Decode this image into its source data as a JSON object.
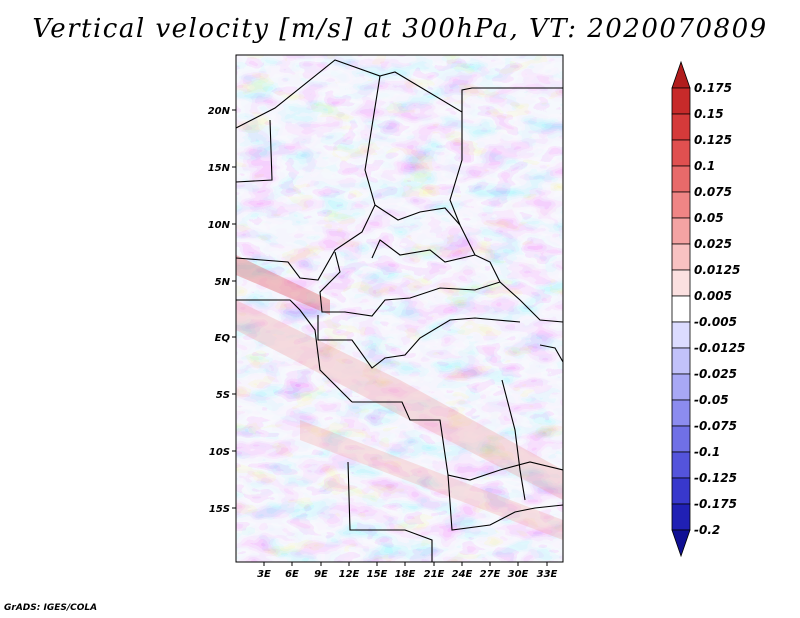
{
  "title": "Vertical velocity [m/s] at 300hPa, VT: 2020070809",
  "credit": "GrADS: IGES/COLA",
  "map": {
    "lat_labels": [
      "20N",
      "15N",
      "10N",
      "5N",
      "EQ",
      "5S",
      "10S",
      "15S"
    ],
    "lon_labels": [
      "3E",
      "6E",
      "9E",
      "12E",
      "15E",
      "18E",
      "21E",
      "24E",
      "27E",
      "30E",
      "33E"
    ]
  },
  "colorbar": {
    "labels": [
      "0.175",
      "0.15",
      "0.125",
      "0.1",
      "0.075",
      "0.05",
      "0.025",
      "0.0125",
      "0.005",
      "-0.005",
      "-0.0125",
      "-0.025",
      "-0.05",
      "-0.075",
      "-0.1",
      "-0.125",
      "-0.175",
      "-0.2"
    ],
    "colors": [
      "#b11d1d",
      "#c72a2a",
      "#d53a3a",
      "#e05050",
      "#e86a6a",
      "#ef8585",
      "#f4a3a3",
      "#f8c2c2",
      "#fbe0e0",
      "#ffffff",
      "#dcdcff",
      "#c2c2fa",
      "#a8a8f5",
      "#8c8cef",
      "#7070e6",
      "#5454dc",
      "#3838cc",
      "#2020b4",
      "#101094"
    ]
  }
}
